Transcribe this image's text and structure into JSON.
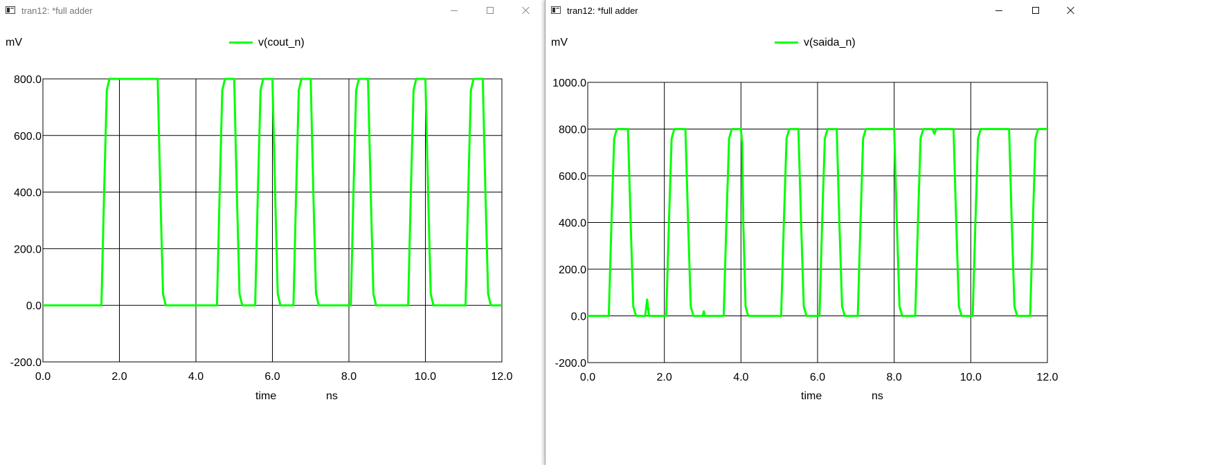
{
  "windows": [
    {
      "title": "tran12: *full adder",
      "unit_label": "mV",
      "legend": "v(cout_n)",
      "x_label": "time",
      "x_unit": "ns",
      "controls": {
        "minimize": "minimize-icon",
        "maximize": "maximize-icon",
        "close": "close-icon"
      }
    },
    {
      "title": "tran12: *full adder",
      "unit_label": "mV",
      "legend": "v(saida_n)",
      "x_label": "time",
      "x_unit": "ns",
      "controls": {
        "minimize": "minimize-icon",
        "maximize": "maximize-icon",
        "close": "close-icon"
      }
    }
  ],
  "colors": {
    "trace": "#00ff00",
    "grid": "#000000",
    "background": "#ffffff"
  },
  "chart_data": [
    {
      "type": "line",
      "title": "",
      "xlabel": "time",
      "xunit": "ns",
      "ylabel": "mV",
      "xlim": [
        0,
        12
      ],
      "ylim": [
        -200,
        800
      ],
      "xticks": [
        "0.0",
        "2.0",
        "4.0",
        "6.0",
        "8.0",
        "10.0",
        "12.0"
      ],
      "yticks": [
        "-200.0",
        "0.0",
        "200.0",
        "400.0",
        "600.0",
        "800.0"
      ],
      "grid": true,
      "legend_position": "top-center",
      "series": [
        {
          "name": "v(cout_n)",
          "color": "#00ff00",
          "x": [
            0,
            1.53,
            1.6,
            1.67,
            1.74,
            3.0,
            3.07,
            3.14,
            3.21,
            4.55,
            4.62,
            4.69,
            4.76,
            5.0,
            5.07,
            5.14,
            5.21,
            5.55,
            5.62,
            5.69,
            5.76,
            6.0,
            6.07,
            6.14,
            6.21,
            6.55,
            6.62,
            6.69,
            6.76,
            7.0,
            7.07,
            7.14,
            7.21,
            8.05,
            8.12,
            8.19,
            8.26,
            8.5,
            8.57,
            8.64,
            8.71,
            9.55,
            9.62,
            9.69,
            9.76,
            10.0,
            10.07,
            10.14,
            10.21,
            11.05,
            11.12,
            11.19,
            11.26,
            11.5,
            11.57,
            11.64,
            11.71,
            12.0
          ],
          "y": [
            0,
            0,
            400,
            760,
            800,
            800,
            400,
            40,
            0,
            0,
            400,
            760,
            800,
            800,
            400,
            40,
            0,
            0,
            400,
            760,
            800,
            800,
            400,
            40,
            0,
            0,
            400,
            760,
            800,
            800,
            400,
            40,
            0,
            0,
            400,
            760,
            800,
            800,
            400,
            40,
            0,
            0,
            400,
            760,
            800,
            800,
            400,
            40,
            0,
            0,
            400,
            760,
            800,
            800,
            400,
            40,
            0,
            0
          ]
        }
      ]
    },
    {
      "type": "line",
      "title": "",
      "xlabel": "time",
      "xunit": "ns",
      "ylabel": "mV",
      "xlim": [
        0,
        12
      ],
      "ylim": [
        -200,
        1000
      ],
      "xticks": [
        "0.0",
        "2.0",
        "4.0",
        "6.0",
        "8.0",
        "10.0",
        "12.0"
      ],
      "yticks": [
        "-200.0",
        "0.0",
        "200.0",
        "400.0",
        "600.0",
        "800.0",
        "1000.0"
      ],
      "grid": true,
      "legend_position": "top-center",
      "series": [
        {
          "name": "v(saida_n)",
          "color": "#00ff00",
          "x": [
            0,
            0.55,
            0.62,
            0.69,
            0.76,
            1.05,
            1.12,
            1.19,
            1.26,
            1.5,
            1.55,
            1.6,
            1.65,
            2.05,
            2.12,
            2.19,
            2.26,
            2.55,
            2.62,
            2.69,
            2.76,
            3.0,
            3.03,
            3.06,
            3.55,
            3.62,
            3.69,
            3.76,
            4.0,
            4.03,
            4.06,
            4.12,
            4.19,
            4.26,
            5.05,
            5.12,
            5.19,
            5.26,
            5.5,
            5.57,
            5.64,
            5.71,
            6.05,
            6.12,
            6.19,
            6.26,
            6.5,
            6.57,
            6.64,
            6.71,
            7.05,
            7.12,
            7.19,
            7.26,
            8.0,
            8.07,
            8.14,
            8.21,
            8.55,
            8.62,
            8.69,
            8.76,
            9.0,
            9.05,
            9.1,
            9.55,
            9.62,
            9.69,
            9.76,
            10.05,
            10.12,
            10.19,
            10.26,
            11.0,
            11.07,
            11.14,
            11.21,
            11.55,
            11.62,
            11.69,
            11.76,
            12.0
          ],
          "y": [
            0,
            0,
            400,
            760,
            800,
            800,
            400,
            40,
            0,
            0,
            70,
            0,
            0,
            0,
            400,
            760,
            800,
            800,
            400,
            40,
            0,
            0,
            20,
            0,
            0,
            400,
            760,
            800,
            800,
            740,
            400,
            40,
            0,
            0,
            0,
            400,
            760,
            800,
            800,
            400,
            40,
            0,
            0,
            400,
            760,
            800,
            800,
            400,
            40,
            0,
            0,
            400,
            760,
            800,
            800,
            400,
            40,
            0,
            0,
            400,
            760,
            800,
            800,
            780,
            800,
            800,
            400,
            40,
            0,
            0,
            400,
            760,
            800,
            800,
            400,
            40,
            0,
            0,
            400,
            760,
            800,
            800
          ]
        }
      ]
    }
  ]
}
